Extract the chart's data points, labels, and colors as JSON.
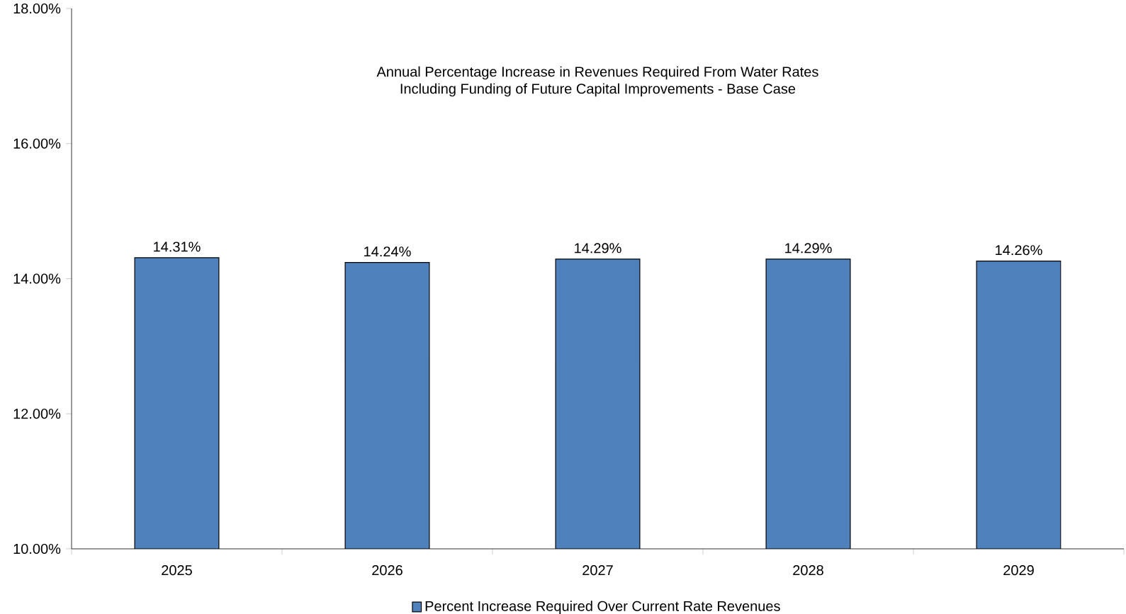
{
  "chart_data": {
    "type": "bar",
    "title": "Annual Percentage Increase in Revenues Required From Water Rates",
    "subtitle": "Including Funding of Future Capital Improvements - Base Case",
    "categories": [
      "2025",
      "2026",
      "2027",
      "2028",
      "2029"
    ],
    "series": [
      {
        "name": "Percent Increase Required Over Current Rate Revenues",
        "color": "#4f81bd",
        "values": [
          14.31,
          14.24,
          14.29,
          14.29,
          14.26
        ],
        "value_labels": [
          "14.31%",
          "14.24%",
          "14.29%",
          "14.29%",
          "14.26%"
        ]
      }
    ],
    "ylim": [
      10,
      18
    ],
    "yticks": [
      {
        "value": 10,
        "label": "10.00%"
      },
      {
        "value": 12,
        "label": "12.00%"
      },
      {
        "value": 14,
        "label": "14.00%"
      },
      {
        "value": 16,
        "label": "16.00%"
      },
      {
        "value": 18,
        "label": "18.00%"
      }
    ],
    "grid": false,
    "legend": "bottom"
  }
}
